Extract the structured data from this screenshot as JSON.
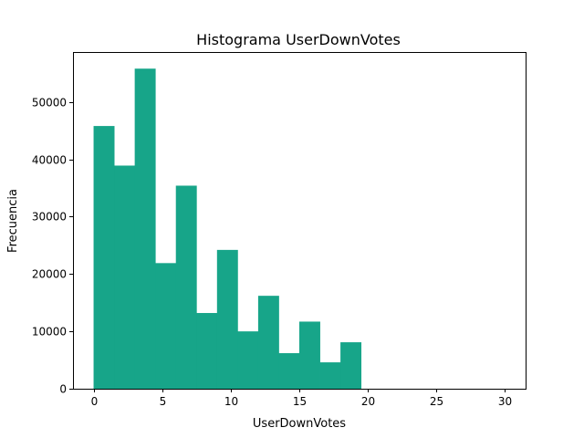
{
  "chart_data": {
    "type": "bar",
    "title": "Histograma UserDownVotes",
    "xlabel": "UserDownVotes",
    "ylabel": "Frecuencia",
    "xlim": [
      -1.5,
      31.5
    ],
    "ylim": [
      0,
      58700
    ],
    "xticks": [
      0,
      5,
      10,
      15,
      20,
      25,
      30
    ],
    "xtick_labels": [
      "0",
      "5",
      "10",
      "15",
      "20",
      "25",
      "30"
    ],
    "yticks": [
      0,
      10000,
      20000,
      30000,
      40000,
      50000
    ],
    "ytick_labels": [
      "0",
      "10000",
      "20000",
      "30000",
      "40000",
      "50000"
    ],
    "grid": false,
    "bar_color": "#17a589",
    "bins": [
      {
        "x0": 0.0,
        "x1": 1.5,
        "value": 45800
      },
      {
        "x0": 1.5,
        "x1": 3.0,
        "value": 38900
      },
      {
        "x0": 3.0,
        "x1": 4.5,
        "value": 55800
      },
      {
        "x0": 4.5,
        "x1": 6.0,
        "value": 21900
      },
      {
        "x0": 6.0,
        "x1": 7.5,
        "value": 35400
      },
      {
        "x0": 7.5,
        "x1": 9.0,
        "value": 13200
      },
      {
        "x0": 9.0,
        "x1": 10.5,
        "value": 24200
      },
      {
        "x0": 10.5,
        "x1": 12.0,
        "value": 10000
      },
      {
        "x0": 12.0,
        "x1": 13.5,
        "value": 16200
      },
      {
        "x0": 13.5,
        "x1": 15.0,
        "value": 6200
      },
      {
        "x0": 15.0,
        "x1": 16.5,
        "value": 11700
      },
      {
        "x0": 16.5,
        "x1": 18.0,
        "value": 4600
      },
      {
        "x0": 18.0,
        "x1": 19.5,
        "value": 8100
      },
      {
        "x0": 19.5,
        "x1": 21.0,
        "value": 0
      },
      {
        "x0": 21.0,
        "x1": 22.5,
        "value": 0
      },
      {
        "x0": 22.5,
        "x1": 24.0,
        "value": 0
      },
      {
        "x0": 24.0,
        "x1": 25.5,
        "value": 0
      },
      {
        "x0": 25.5,
        "x1": 27.0,
        "value": 0
      },
      {
        "x0": 27.0,
        "x1": 28.5,
        "value": 0
      },
      {
        "x0": 28.5,
        "x1": 30.0,
        "value": 0
      }
    ]
  }
}
